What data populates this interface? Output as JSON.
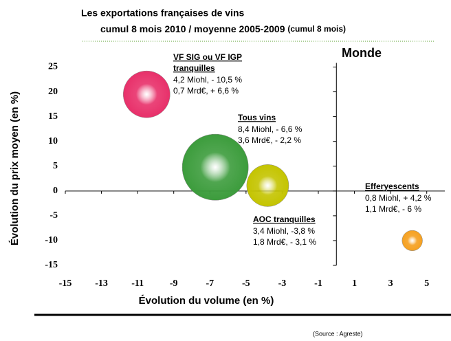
{
  "chart_data": {
    "type": "bubble",
    "title": "Les exportations françaises de vins",
    "subtitle": "cumul 8 mois 2010  / moyenne 2005-2009",
    "subtitle_note": "(cumul 8 mois)",
    "region": "Monde",
    "x_label": "Évolution du volume (en %)",
    "y_label": "Évolution du prix moyen (en %)",
    "source": "(Source : Agreste)",
    "xlim": [
      -15,
      6
    ],
    "xticks": [
      -15,
      -13,
      -11,
      -9,
      -7,
      -5,
      -3,
      -1,
      1,
      3,
      5
    ],
    "ylim": [
      -15,
      25
    ],
    "yticks": [
      -15,
      -10,
      -5,
      0,
      5,
      10,
      15,
      20,
      25
    ],
    "series": [
      {
        "name": [
          "VF SIG ou VF IGP",
          "tranquilles"
        ],
        "details": [
          "4,2 Miohl, - 10,5 %",
          "0,7 Mrd€, + 6,6 %"
        ],
        "color": "#e8306a",
        "x": -10.5,
        "value": 19.5,
        "size": 4.2
      },
      {
        "name": [
          "Tous vins"
        ],
        "details": [
          "8,4 Miohl, - 6,6 %",
          "3,6 Mrd€, - 2,2 %"
        ],
        "color": "#3c9c3c",
        "x": -6.7,
        "value": 4.8,
        "size": 8.4
      },
      {
        "name": [
          "AOC tranquilles"
        ],
        "details": [
          "3,4 Miohl,  -3,8 %",
          "1,8 Mrd€, - 3,1 %"
        ],
        "color": "#c4c400",
        "x": -3.8,
        "value": 1.1,
        "size": 3.4
      },
      {
        "name": [
          "Efferyescents"
        ],
        "details": [
          "0,8 Miohl,  + 4,2 %",
          "1,1 Mrd€, - 6 %"
        ],
        "color": "#f5a020",
        "x": 4.2,
        "value": -10,
        "size": 0.8
      }
    ]
  }
}
